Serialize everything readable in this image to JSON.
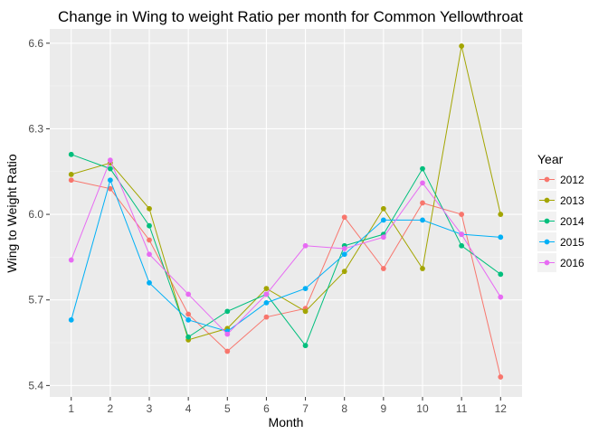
{
  "chart_data": {
    "type": "line",
    "title": "Change in Wing to weight Ratio per month for Common Yellowthroat",
    "xlabel": "Month",
    "ylabel": "Wing to Weight Ratio",
    "x": [
      1,
      2,
      3,
      4,
      5,
      6,
      7,
      8,
      9,
      10,
      11,
      12
    ],
    "x_ticks": [
      "1",
      "2",
      "3",
      "4",
      "5",
      "6",
      "7",
      "8",
      "9",
      "10",
      "11",
      "12"
    ],
    "y_ticks": [
      "5.4",
      "5.7",
      "6.0",
      "6.3",
      "6.6"
    ],
    "y_tick_values": [
      5.4,
      5.7,
      6.0,
      6.3,
      6.6
    ],
    "xlim": [
      0.45,
      12.55
    ],
    "ylim": [
      5.36,
      6.65
    ],
    "grid": true,
    "legend": {
      "title": "Year",
      "position": "right"
    },
    "series": [
      {
        "name": "2012",
        "color": "#F8766D",
        "values": [
          6.12,
          6.09,
          5.91,
          5.65,
          5.52,
          5.64,
          5.67,
          5.99,
          5.81,
          6.04,
          6.0,
          5.43
        ]
      },
      {
        "name": "2013",
        "color": "#A3A500",
        "values": [
          6.14,
          6.18,
          6.02,
          5.56,
          5.6,
          5.74,
          5.66,
          5.8,
          6.02,
          5.81,
          6.59,
          6.0
        ]
      },
      {
        "name": "2014",
        "color": "#00BF7D",
        "values": [
          6.21,
          6.16,
          5.96,
          5.57,
          5.66,
          5.72,
          5.54,
          5.89,
          5.93,
          6.16,
          5.89,
          5.79
        ]
      },
      {
        "name": "2015",
        "color": "#00B0F6",
        "values": [
          5.63,
          6.12,
          5.76,
          5.63,
          5.59,
          5.69,
          5.74,
          5.86,
          5.98,
          5.98,
          5.93,
          5.92
        ]
      },
      {
        "name": "2016",
        "color": "#E76BF3",
        "values": [
          5.84,
          6.19,
          5.86,
          5.72,
          5.58,
          5.72,
          5.89,
          5.88,
          5.92,
          6.11,
          5.93,
          5.71
        ]
      }
    ]
  }
}
